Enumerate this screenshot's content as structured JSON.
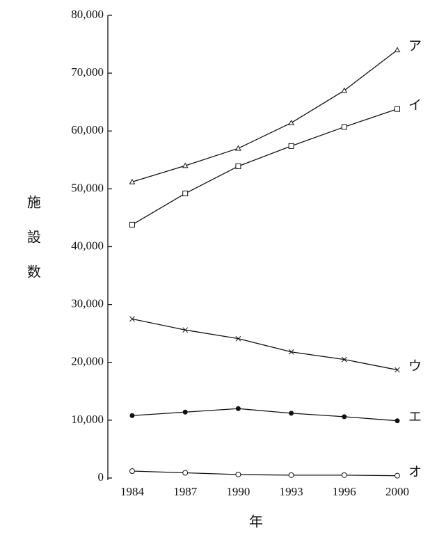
{
  "chart_data": {
    "type": "line",
    "y_label": "施設数",
    "x_label": "年",
    "categories": [
      "1984",
      "1987",
      "1990",
      "1993",
      "1996",
      "2000"
    ],
    "series": [
      {
        "name": "ア",
        "color": "#111111",
        "marker": "triangle",
        "values": [
          51200,
          54000,
          57000,
          61400,
          67000,
          74000
        ]
      },
      {
        "name": "イ",
        "color": "#111111",
        "marker": "square",
        "values": [
          43800,
          49200,
          53900,
          57400,
          60700,
          63800
        ]
      },
      {
        "name": "ウ",
        "color": "#111111",
        "marker": "cross",
        "values": [
          27500,
          25600,
          24100,
          21800,
          20500,
          18700
        ]
      },
      {
        "name": "エ",
        "color": "#111111",
        "marker": "filled-circle",
        "values": [
          10800,
          11400,
          12000,
          11200,
          10600,
          9900
        ]
      },
      {
        "name": "オ",
        "color": "#111111",
        "marker": "open-circle",
        "values": [
          1200,
          900,
          600,
          500,
          500,
          400
        ]
      }
    ],
    "ylim": [
      0,
      80000
    ],
    "yticks": [
      0,
      {
        "value": 10000,
        "label": "10,000"
      },
      {
        "value": 20000,
        "label": "20,000"
      },
      {
        "value": 30000,
        "label": "30,000"
      },
      {
        "value": 40000,
        "label": "40,000"
      },
      {
        "value": 50000,
        "label": "50,000"
      },
      {
        "value": 60000,
        "label": "60,000"
      },
      {
        "value": 70000,
        "label": "70,000"
      },
      {
        "value": 80000,
        "label": "80,000"
      }
    ],
    "grid": false
  }
}
